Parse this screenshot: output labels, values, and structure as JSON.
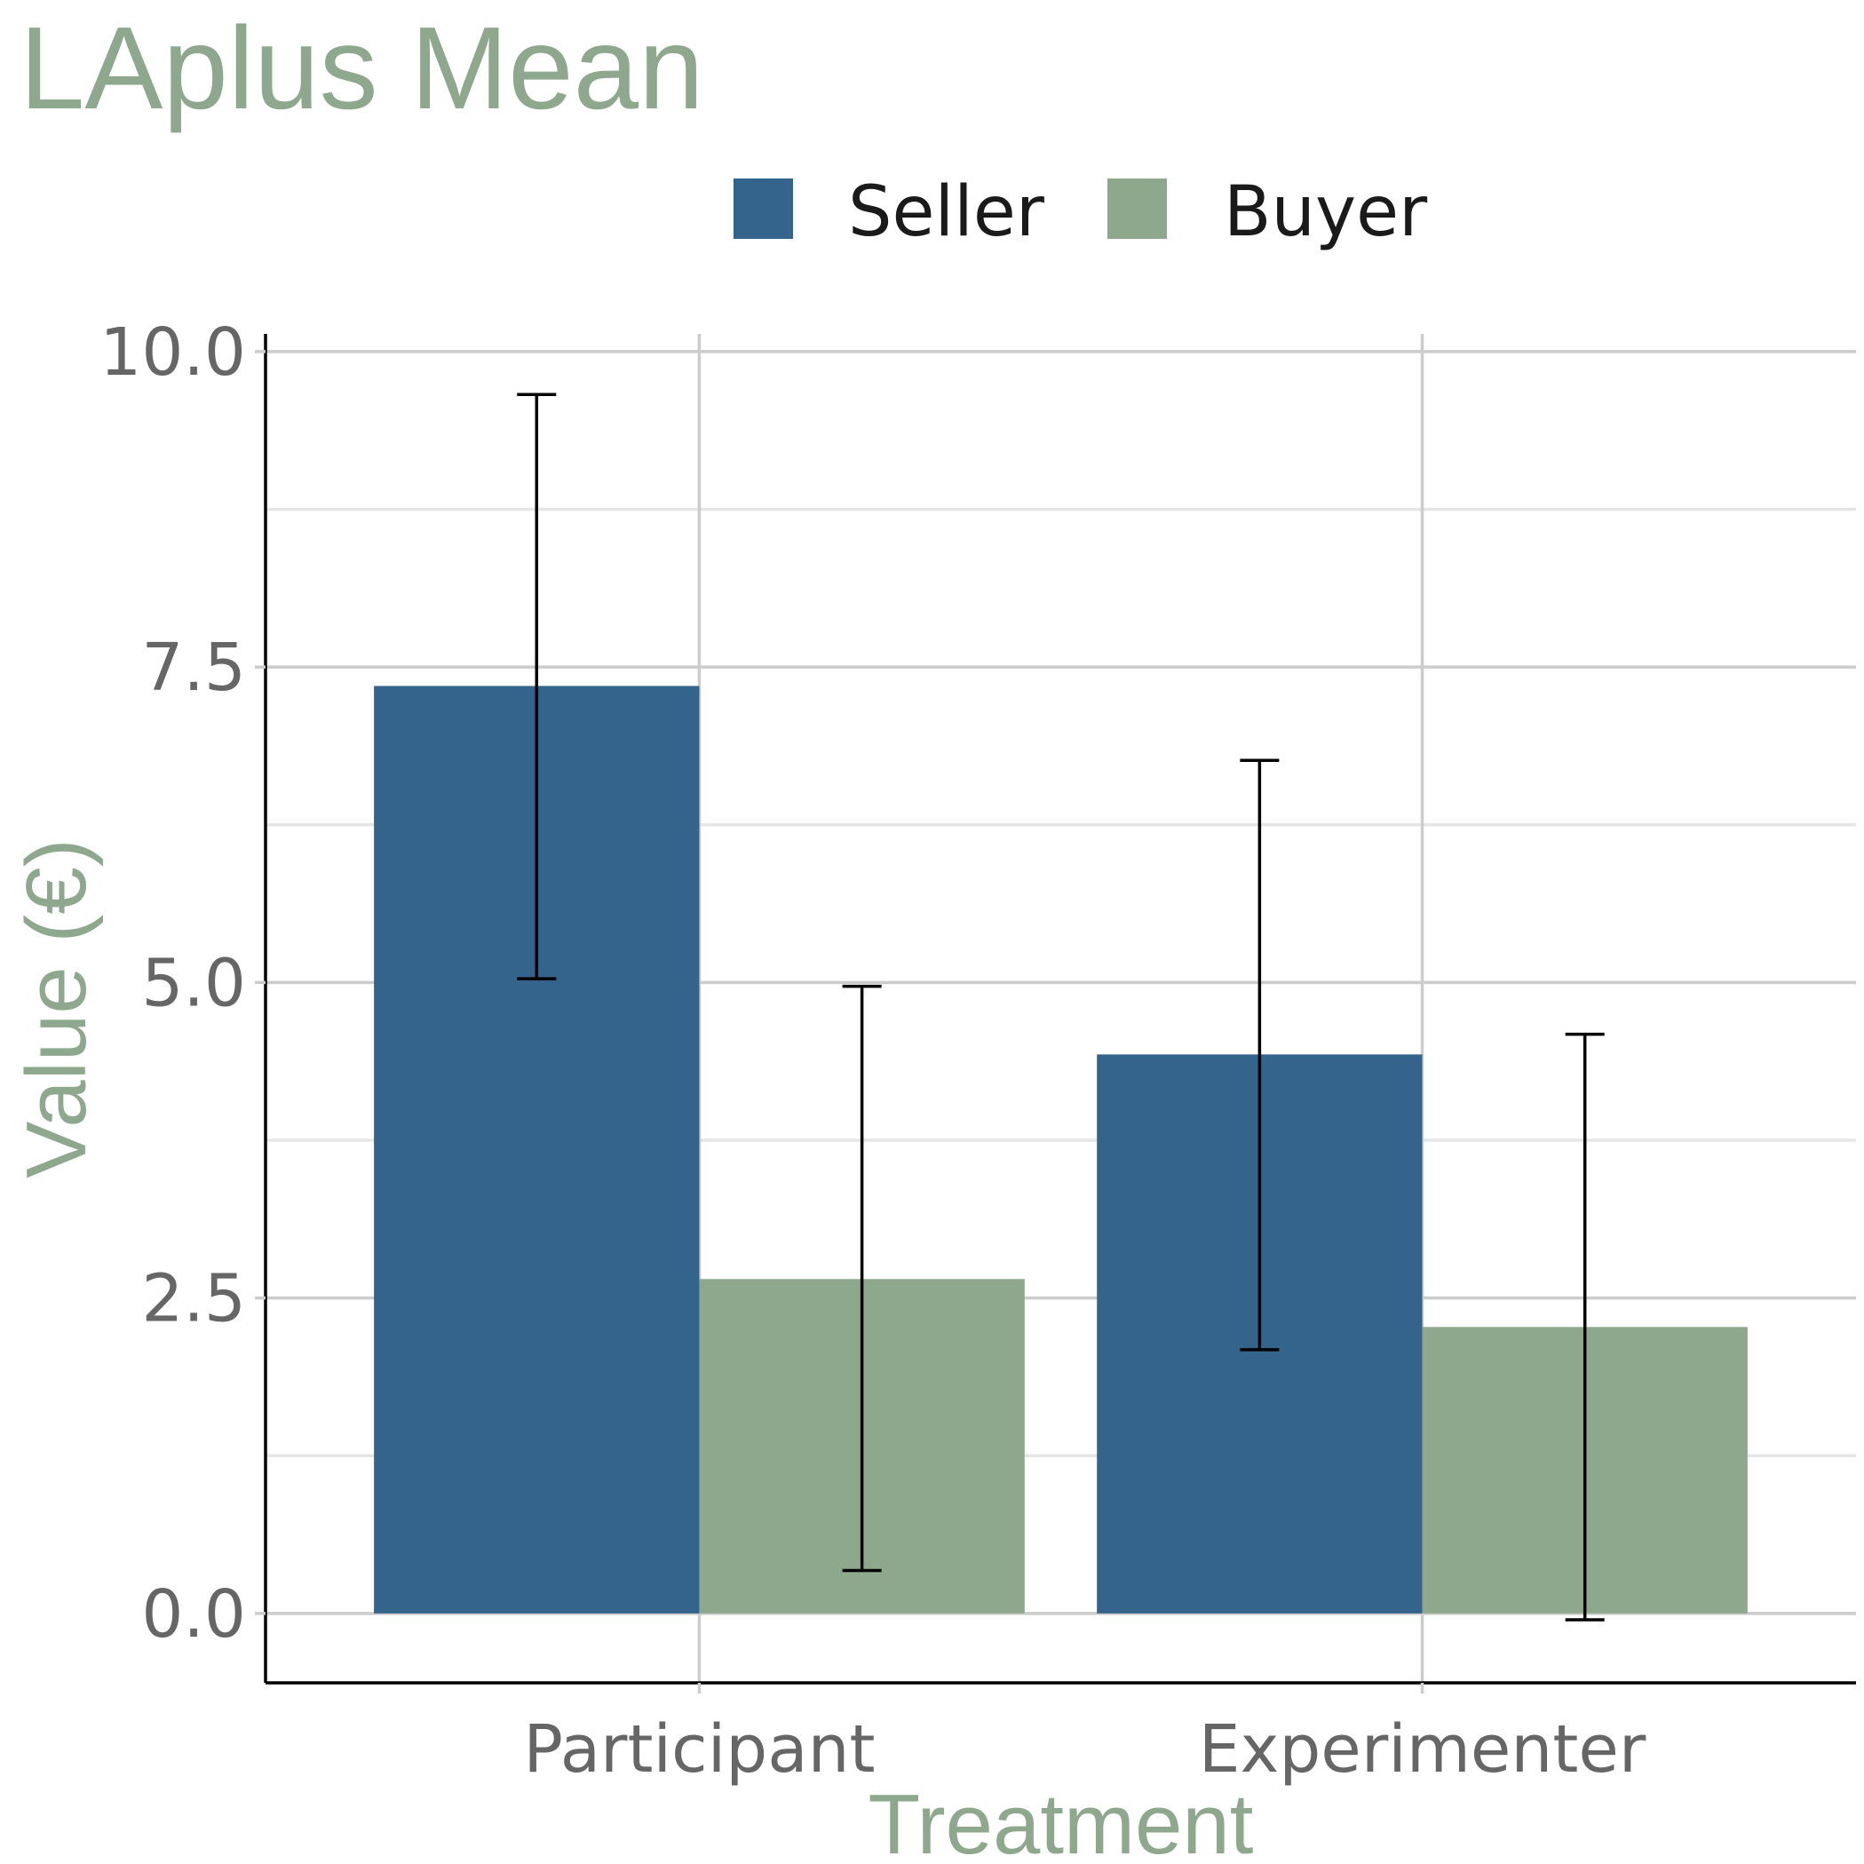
{
  "chart_data": {
    "type": "bar",
    "title": "LAplus Mean",
    "xlabel": "Treatment",
    "ylabel": "Value (€)",
    "categories": [
      "Participant",
      "Experimenter"
    ],
    "series": [
      {
        "name": "Seller",
        "color": "#34648c",
        "values": [
          7.35,
          4.43
        ],
        "error_low": [
          5.03,
          2.09
        ],
        "error_high": [
          9.66,
          6.76
        ]
      },
      {
        "name": "Buyer",
        "color": "#8ea88e",
        "values": [
          2.65,
          2.27
        ],
        "error_low": [
          0.34,
          -0.05
        ],
        "error_high": [
          4.97,
          4.59
        ]
      }
    ],
    "ylim": [
      -0.55,
      10.14
    ],
    "yticks": [
      0.0,
      2.5,
      5.0,
      7.5,
      10.0
    ],
    "ytick_labels": [
      "0.0",
      "2.5",
      "5.0",
      "7.5",
      "10.0"
    ],
    "legend_position": "top",
    "grid": true
  }
}
